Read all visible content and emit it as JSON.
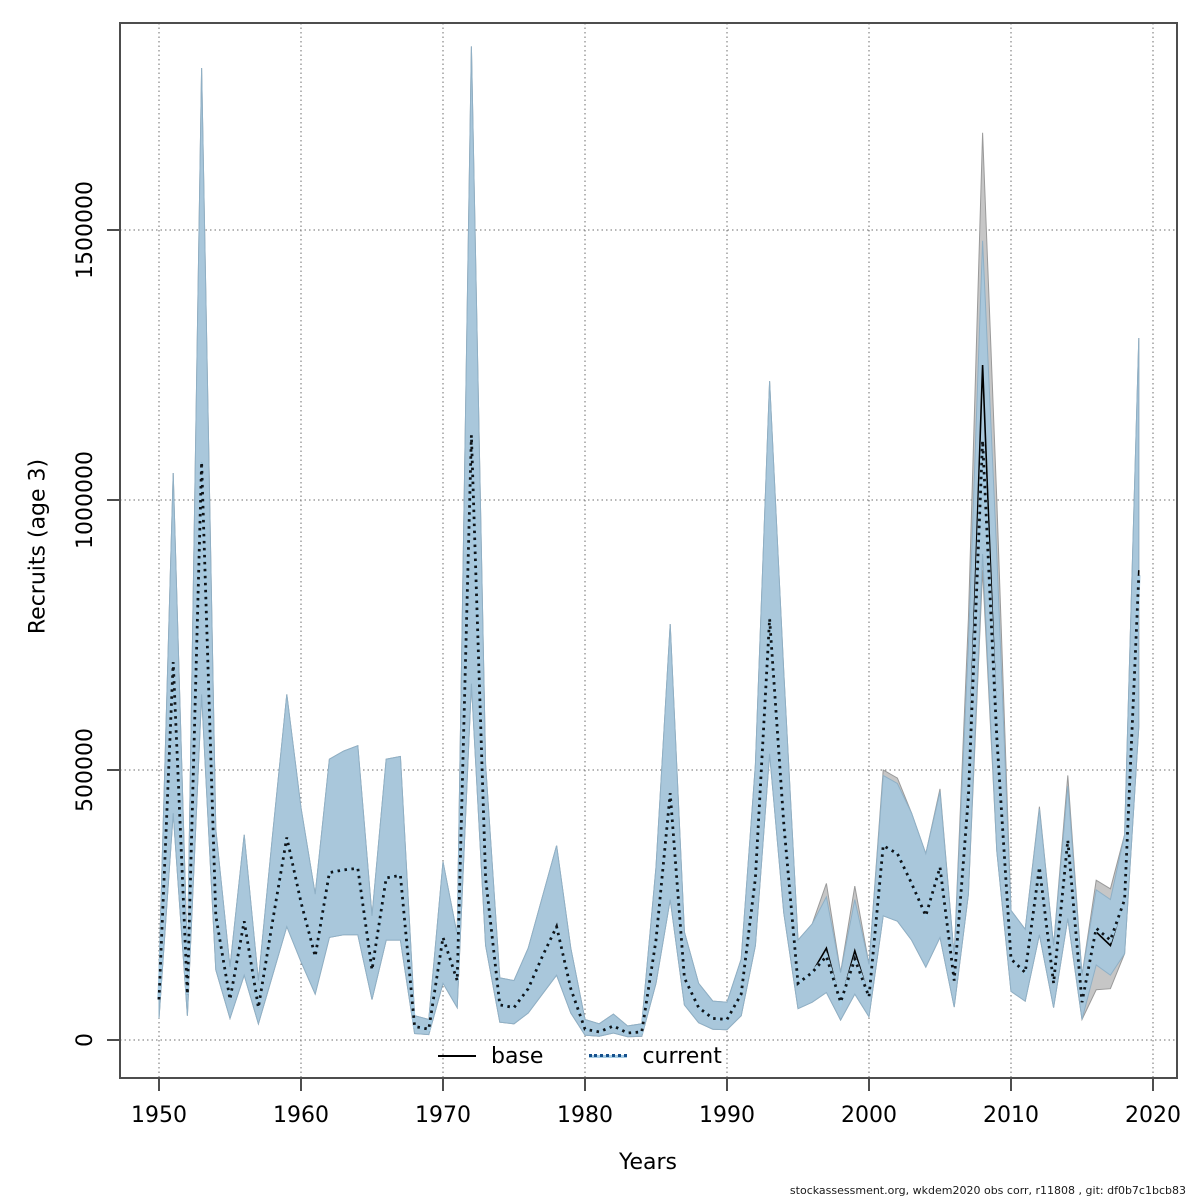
{
  "page": {
    "background": "#ffffff"
  },
  "footer": {
    "text": "stockassessment.org, wkdem2020 obs corr, r11808 , git: df0b7c1bcb83"
  },
  "chart_data": {
    "type": "line",
    "title": "",
    "xlabel": "Years",
    "ylabel": "Recruits (age 3)",
    "x_ticks": [
      1950,
      1960,
      1970,
      1980,
      1990,
      2000,
      2010,
      2020
    ],
    "y_ticks": [
      0,
      500000,
      1000000,
      1500000
    ],
    "xlim": [
      1947.3,
      2021.7
    ],
    "ylim": [
      0,
      1883000
    ],
    "grid": "dotted",
    "colors": {
      "base_line": "#000000",
      "base_band": "#c6c6c6",
      "current_line_dots": "#15508c",
      "current_line_under": "#a6cce4",
      "current_band": "#a9c7db",
      "grid": "#6e6e6e",
      "border": "#4d4d4d"
    },
    "legend": {
      "position": "bottom-center",
      "items": [
        {
          "label": "base",
          "style": "solid-black-line"
        },
        {
          "label": "current",
          "style": "dotted-blue-line"
        }
      ]
    },
    "years": [
      1950,
      1951,
      1952,
      1953,
      1954,
      1955,
      1956,
      1957,
      1958,
      1959,
      1960,
      1961,
      1962,
      1963,
      1964,
      1965,
      1966,
      1967,
      1968,
      1969,
      1970,
      1971,
      1972,
      1973,
      1974,
      1975,
      1976,
      1977,
      1978,
      1979,
      1980,
      1981,
      1982,
      1983,
      1984,
      1985,
      1986,
      1987,
      1988,
      1989,
      1990,
      1991,
      1992,
      1993,
      1994,
      1995,
      1996,
      1997,
      1998,
      1999,
      2000,
      2001,
      2002,
      2003,
      2004,
      2005,
      2006,
      2007,
      2008,
      2009,
      2010,
      2011,
      2012,
      2013,
      2014,
      2015,
      2016,
      2017,
      2018,
      2019
    ],
    "series": [
      {
        "name": "base",
        "values": [
          75000,
          700000,
          85000,
          1070000,
          230000,
          75000,
          220000,
          60000,
          220000,
          375000,
          255000,
          155000,
          310000,
          315000,
          318000,
          130000,
          300000,
          305000,
          25000,
          20000,
          190000,
          110000,
          1120000,
          300000,
          65000,
          60000,
          95000,
          155000,
          210000,
          95000,
          20000,
          15000,
          26000,
          13000,
          15000,
          185000,
          457000,
          115000,
          60000,
          40000,
          38000,
          85000,
          300000,
          780000,
          400000,
          105000,
          125000,
          170000,
          70000,
          165000,
          80000,
          360000,
          345000,
          290000,
          230000,
          320000,
          110000,
          470000,
          1250000,
          580000,
          150000,
          125000,
          320000,
          105000,
          370000,
          70000,
          200000,
          175000,
          260000,
          870000
        ],
        "ci_hi": [
          125000,
          1050000,
          150000,
          1800000,
          390000,
          135000,
          380000,
          110000,
          380000,
          640000,
          430000,
          270000,
          520000,
          535000,
          545000,
          230000,
          520000,
          525000,
          45000,
          38000,
          330000,
          195000,
          1840000,
          510000,
          115000,
          110000,
          170000,
          265000,
          360000,
          170000,
          38000,
          30000,
          48000,
          26000,
          30000,
          320000,
          770000,
          200000,
          105000,
          72000,
          70000,
          150000,
          510000,
          1220000,
          680000,
          185000,
          215000,
          290000,
          125000,
          285000,
          140000,
          500000,
          485000,
          420000,
          345000,
          465000,
          155000,
          780000,
          1680000,
          1000000,
          240000,
          205000,
          432000,
          175000,
          490000,
          120000,
          296000,
          280000,
          380000,
          1300000
        ],
        "ci_lo": [
          40000,
          420000,
          45000,
          640000,
          130000,
          40000,
          120000,
          30000,
          120000,
          210000,
          145000,
          85000,
          190000,
          195000,
          195000,
          75000,
          185000,
          185000,
          12000,
          10000,
          105000,
          60000,
          660000,
          175000,
          33000,
          30000,
          50000,
          85000,
          120000,
          50000,
          9000,
          7000,
          13000,
          6000,
          7000,
          105000,
          260000,
          65000,
          32000,
          20000,
          19000,
          45000,
          175000,
          530000,
          235000,
          58000,
          70000,
          88000,
          37000,
          85000,
          43000,
          230000,
          220000,
          185000,
          135000,
          190000,
          61000,
          270000,
          870000,
          350000,
          90000,
          72000,
          195000,
          60000,
          225000,
          38000,
          93000,
          95000,
          160000,
          580000
        ]
      },
      {
        "name": "current",
        "values": [
          75000,
          700000,
          85000,
          1070000,
          230000,
          75000,
          220000,
          60000,
          220000,
          375000,
          255000,
          155000,
          310000,
          315000,
          318000,
          130000,
          300000,
          305000,
          25000,
          20000,
          190000,
          110000,
          1120000,
          300000,
          65000,
          60000,
          95000,
          155000,
          210000,
          95000,
          20000,
          15000,
          26000,
          13000,
          15000,
          185000,
          457000,
          115000,
          60000,
          40000,
          38000,
          85000,
          300000,
          780000,
          400000,
          105000,
          125000,
          155000,
          70000,
          150000,
          80000,
          360000,
          345000,
          290000,
          230000,
          320000,
          110000,
          450000,
          1110000,
          560000,
          150000,
          125000,
          320000,
          105000,
          370000,
          70000,
          207000,
          185000,
          260000,
          860000
        ],
        "ci_hi": [
          125000,
          1050000,
          150000,
          1800000,
          390000,
          135000,
          380000,
          110000,
          380000,
          640000,
          430000,
          270000,
          520000,
          535000,
          545000,
          230000,
          520000,
          525000,
          45000,
          38000,
          330000,
          195000,
          1840000,
          510000,
          115000,
          110000,
          170000,
          265000,
          360000,
          170000,
          38000,
          30000,
          48000,
          26000,
          30000,
          320000,
          770000,
          200000,
          105000,
          72000,
          70000,
          150000,
          510000,
          1220000,
          680000,
          185000,
          215000,
          265000,
          125000,
          260000,
          140000,
          490000,
          475000,
          420000,
          345000,
          460000,
          155000,
          730000,
          1480000,
          900000,
          240000,
          205000,
          428000,
          175000,
          470000,
          120000,
          278000,
          260000,
          380000,
          1300000
        ],
        "ci_lo": [
          40000,
          420000,
          45000,
          640000,
          130000,
          40000,
          120000,
          30000,
          120000,
          210000,
          145000,
          85000,
          190000,
          195000,
          195000,
          75000,
          185000,
          185000,
          12000,
          10000,
          105000,
          60000,
          660000,
          175000,
          33000,
          30000,
          50000,
          85000,
          120000,
          50000,
          9000,
          7000,
          13000,
          6000,
          7000,
          105000,
          260000,
          65000,
          32000,
          20000,
          19000,
          45000,
          175000,
          530000,
          235000,
          58000,
          70000,
          88000,
          37000,
          85000,
          43000,
          230000,
          220000,
          185000,
          135000,
          190000,
          61000,
          270000,
          900000,
          350000,
          90000,
          72000,
          195000,
          60000,
          225000,
          38000,
          139000,
          120000,
          160000,
          580000
        ]
      }
    ]
  }
}
